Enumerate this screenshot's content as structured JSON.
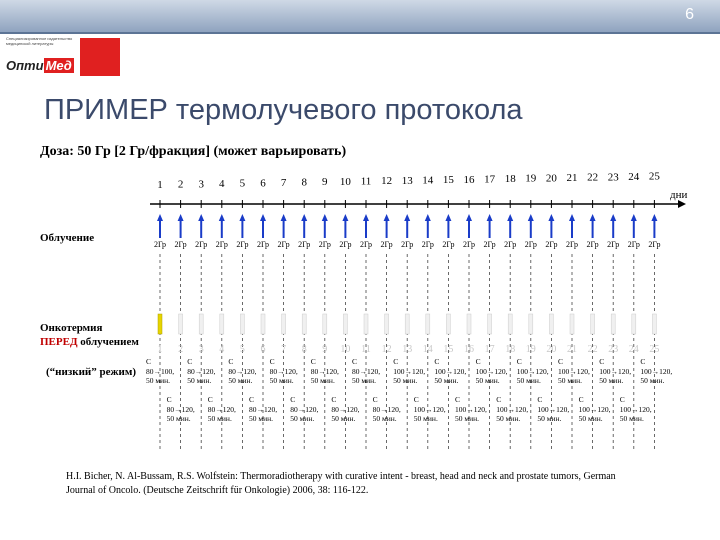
{
  "slide_number": "6",
  "logo": {
    "small_text": "Специализированное издательство медицинской литературы",
    "brand_a": "Опти",
    "brand_b": "Мед"
  },
  "title": "ПРИМЕР термолучевого протокола",
  "dose": "Доза: 50 Гр [2 Гр/фракция] (может варьировать)",
  "days": [
    "1",
    "2",
    "3",
    "4",
    "5",
    "6",
    "7",
    "8",
    "9",
    "10",
    "11",
    "12",
    "13",
    "14",
    "15",
    "16",
    "17",
    "18",
    "19",
    "20",
    "21",
    "22",
    "23",
    "24",
    "25"
  ],
  "axis_unit": "дни",
  "rows": {
    "irradiation": "Облучение",
    "hyperthermia_1": "Онкотермия",
    "hyperthermia_2a": "ПЕРЕД",
    "hyperthermia_2b": " облучением",
    "hyperthermia_3": "(“низкий” режим)"
  },
  "fraction_label": "2Гр",
  "session_letter": "С",
  "session_doses": [
    "80→100,",
    "80→120,",
    "80→120,",
    "80→120,",
    "80→120,",
    "80→120,",
    "80→120,",
    "80→120,",
    "80→120,",
    "80→120,",
    "80→120,",
    "80→120,",
    "100→120,",
    "100→120,",
    "100→120,",
    "100→120,",
    "100→120,",
    "100→120,",
    "100→120,",
    "100→120,",
    "100→120,",
    "100→120,",
    "100→120,",
    "100→120,",
    "100→120,"
  ],
  "session_duration": "50 мин.",
  "citation": "H.I. Bicher, N. Al-Bussam, R.S. Wolfstein: Thermoradiotherapy with curative intent - breast, head and neck and prostate tumors, German Journal of Oncolo. (Deutsche Zeitschrift für Onkologie) 2006, 38: 116-122."
}
